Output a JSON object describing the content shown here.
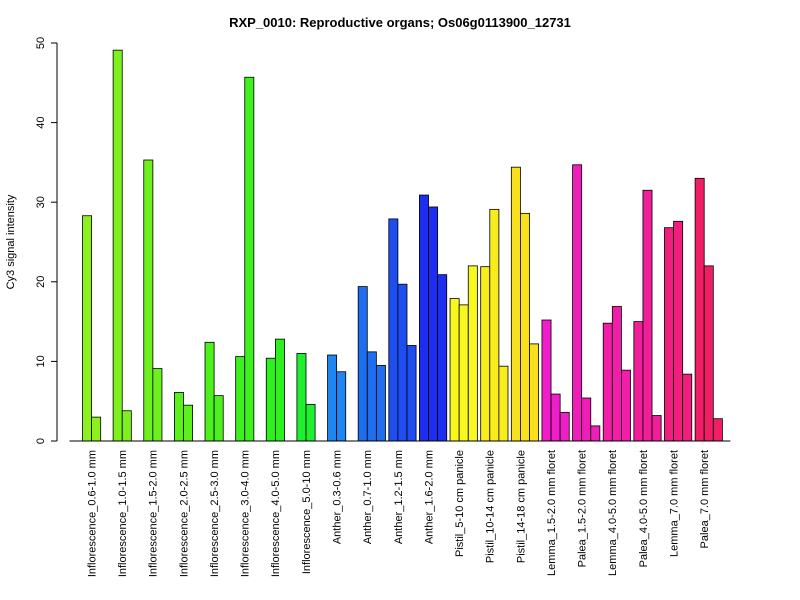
{
  "chart_data": {
    "type": "bar",
    "title": "RXP_0010: Reproductive organs; Os06g0113900_12731",
    "xlabel": "",
    "ylabel": "Cy3 signal intensity",
    "ylim": [
      0,
      50
    ],
    "yticks": [
      0,
      10,
      20,
      30,
      40,
      50
    ],
    "grid": false,
    "legend": "none",
    "groups": [
      {
        "label": "Inflorescence_0.6-1.0 mm",
        "values": [
          28.3,
          3.0
        ],
        "color": "#8cf01e"
      },
      {
        "label": "Inflorescence_1.0-1.5 mm",
        "values": [
          49.1,
          3.8
        ],
        "color": "#7ef01e"
      },
      {
        "label": "Inflorescence_1.5-2.0 mm",
        "values": [
          35.3,
          9.1
        ],
        "color": "#6ef01e"
      },
      {
        "label": "Inflorescence_2.0-2.5 mm",
        "values": [
          6.1,
          4.5
        ],
        "color": "#5ef01e"
      },
      {
        "label": "Inflorescence_2.5-3.0 mm",
        "values": [
          12.4,
          5.7
        ],
        "color": "#4ef01e"
      },
      {
        "label": "Inflorescence_3.0-4.0 mm",
        "values": [
          10.6,
          45.7
        ],
        "color": "#3ef01e"
      },
      {
        "label": "Inflorescence_4.0-5.0 mm",
        "values": [
          10.4,
          12.8
        ],
        "color": "#2ef01e"
      },
      {
        "label": "Inflorescence_5.0-10 mm",
        "values": [
          11.0,
          4.6
        ],
        "color": "#1ef030"
      },
      {
        "label": "Anther_0.3-0.6 mm",
        "values": [
          10.8,
          8.7
        ],
        "color": "#1e86f0"
      },
      {
        "label": "Anther_0.7-1.0 mm",
        "values": [
          19.4,
          11.2,
          9.5
        ],
        "color": "#1e6ef0"
      },
      {
        "label": "Anther_1.2-1.5 mm",
        "values": [
          27.9,
          19.7,
          12.0
        ],
        "color": "#1e4ef0"
      },
      {
        "label": "Anther_1.6-2.0 mm",
        "values": [
          30.9,
          29.4,
          20.9
        ],
        "color": "#1e2ef0"
      },
      {
        "label": "Pistil_5-10 cm panicle",
        "values": [
          17.9,
          17.1,
          22.0
        ],
        "color": "#f8f81e"
      },
      {
        "label": "Pistil_10-14 cm panicle",
        "values": [
          21.9,
          29.1,
          9.4
        ],
        "color": "#f8ec1e"
      },
      {
        "label": "Pistil_14-18 cm panicle",
        "values": [
          34.4,
          28.6,
          12.2
        ],
        "color": "#f8e01e"
      },
      {
        "label": "Lemma_1.5-2.0 mm floret",
        "values": [
          15.2,
          5.9,
          3.6
        ],
        "color": "#f01ec8"
      },
      {
        "label": "Palea_1.5-2.0 mm floret",
        "values": [
          34.7,
          5.4,
          1.9
        ],
        "color": "#f01eb8"
      },
      {
        "label": "Lemma_4.0-5.0 mm floret",
        "values": [
          14.8,
          16.9,
          8.9
        ],
        "color": "#f01ea8"
      },
      {
        "label": "Palea_4.0-5.0 mm floret",
        "values": [
          15.0,
          31.5,
          3.2
        ],
        "color": "#f01e98"
      },
      {
        "label": "Lemma_7.0 mm floret",
        "values": [
          26.8,
          27.6,
          8.4
        ],
        "color": "#f01e7c"
      },
      {
        "label": "Palea_7.0 mm floret",
        "values": [
          33.0,
          22.0,
          2.8
        ],
        "color": "#f01e64"
      }
    ]
  }
}
